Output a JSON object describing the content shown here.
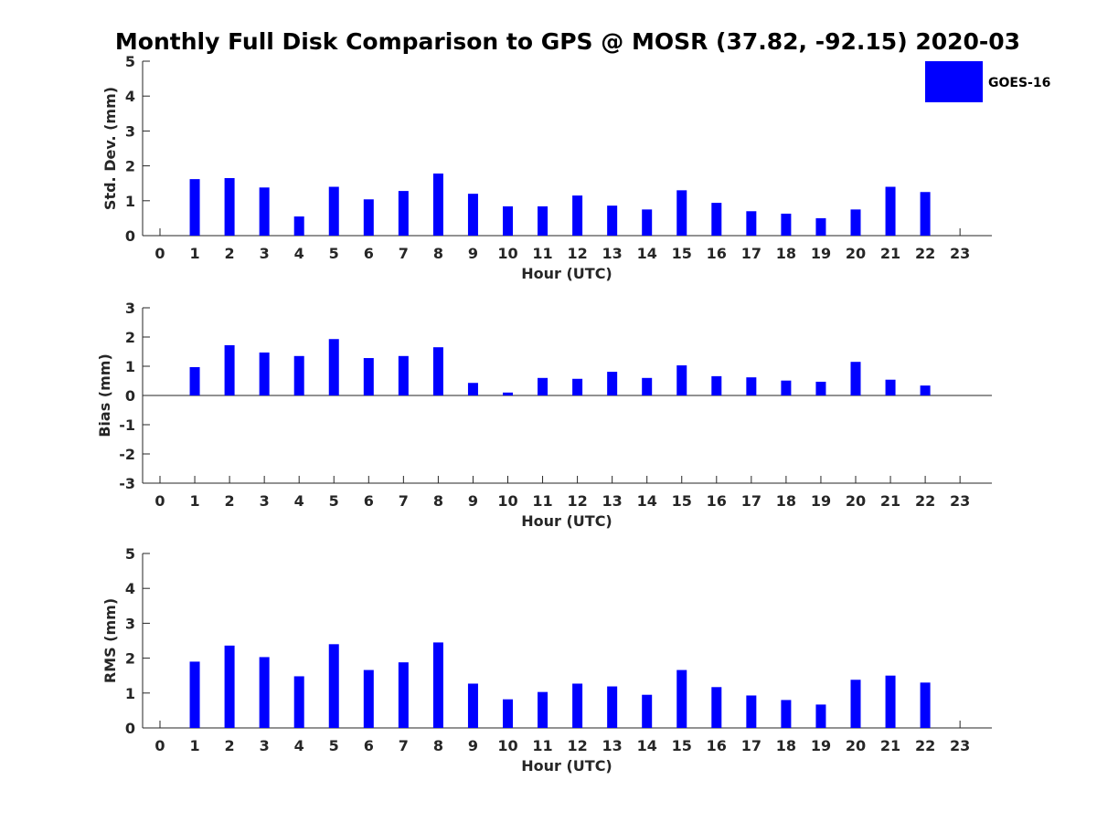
{
  "title": "Monthly Full Disk Comparison to GPS @ MOSR (37.82, -92.15) 2020-03",
  "legend": {
    "label": "GOES-16",
    "color": "#0000ff"
  },
  "bar_color": "#0000ff",
  "chart_data": [
    {
      "type": "bar",
      "id": "std",
      "title": "Monthly Full Disk Comparison to GPS @ MOSR (37.82, -92.15) 2020-03",
      "xlabel": "Hour (UTC)",
      "ylabel": "Std. Dev. (mm)",
      "ylim": [
        0,
        5
      ],
      "yticks": [
        0,
        1,
        2,
        3,
        4,
        5
      ],
      "categories": [
        "0",
        "1",
        "2",
        "3",
        "4",
        "5",
        "6",
        "7",
        "8",
        "9",
        "10",
        "11",
        "12",
        "13",
        "14",
        "15",
        "16",
        "17",
        "18",
        "19",
        "20",
        "21",
        "22",
        "23"
      ],
      "series": [
        {
          "name": "GOES-16",
          "values": [
            null,
            1.62,
            1.65,
            1.38,
            0.55,
            1.4,
            1.04,
            1.28,
            1.78,
            1.2,
            0.84,
            0.84,
            1.15,
            0.86,
            0.75,
            1.3,
            0.94,
            0.7,
            0.63,
            0.5,
            0.75,
            1.4,
            1.25,
            null
          ]
        }
      ]
    },
    {
      "type": "bar",
      "id": "bias",
      "xlabel": "Hour (UTC)",
      "ylabel": "Bias (mm)",
      "ylim": [
        -3,
        3
      ],
      "yticks": [
        -3,
        -2,
        -1,
        0,
        1,
        2,
        3
      ],
      "categories": [
        "0",
        "1",
        "2",
        "3",
        "4",
        "5",
        "6",
        "7",
        "8",
        "9",
        "10",
        "11",
        "12",
        "13",
        "14",
        "15",
        "16",
        "17",
        "18",
        "19",
        "20",
        "21",
        "22",
        "23"
      ],
      "series": [
        {
          "name": "GOES-16",
          "values": [
            null,
            0.97,
            1.72,
            1.47,
            1.35,
            1.93,
            1.28,
            1.35,
            1.65,
            0.43,
            0.1,
            0.6,
            0.57,
            0.81,
            0.6,
            1.03,
            0.66,
            0.62,
            0.51,
            0.47,
            1.15,
            0.54,
            0.34,
            null
          ]
        }
      ]
    },
    {
      "type": "bar",
      "id": "rms",
      "xlabel": "Hour (UTC)",
      "ylabel": "RMS (mm)",
      "ylim": [
        0,
        5
      ],
      "yticks": [
        0,
        1,
        2,
        3,
        4,
        5
      ],
      "categories": [
        "0",
        "1",
        "2",
        "3",
        "4",
        "5",
        "6",
        "7",
        "8",
        "9",
        "10",
        "11",
        "12",
        "13",
        "14",
        "15",
        "16",
        "17",
        "18",
        "19",
        "20",
        "21",
        "22",
        "23"
      ],
      "series": [
        {
          "name": "GOES-16",
          "values": [
            null,
            1.9,
            2.36,
            2.03,
            1.48,
            2.4,
            1.66,
            1.88,
            2.45,
            1.27,
            0.82,
            1.03,
            1.27,
            1.19,
            0.95,
            1.66,
            1.17,
            0.93,
            0.8,
            0.67,
            1.38,
            1.5,
            1.3,
            null
          ]
        }
      ]
    }
  ]
}
